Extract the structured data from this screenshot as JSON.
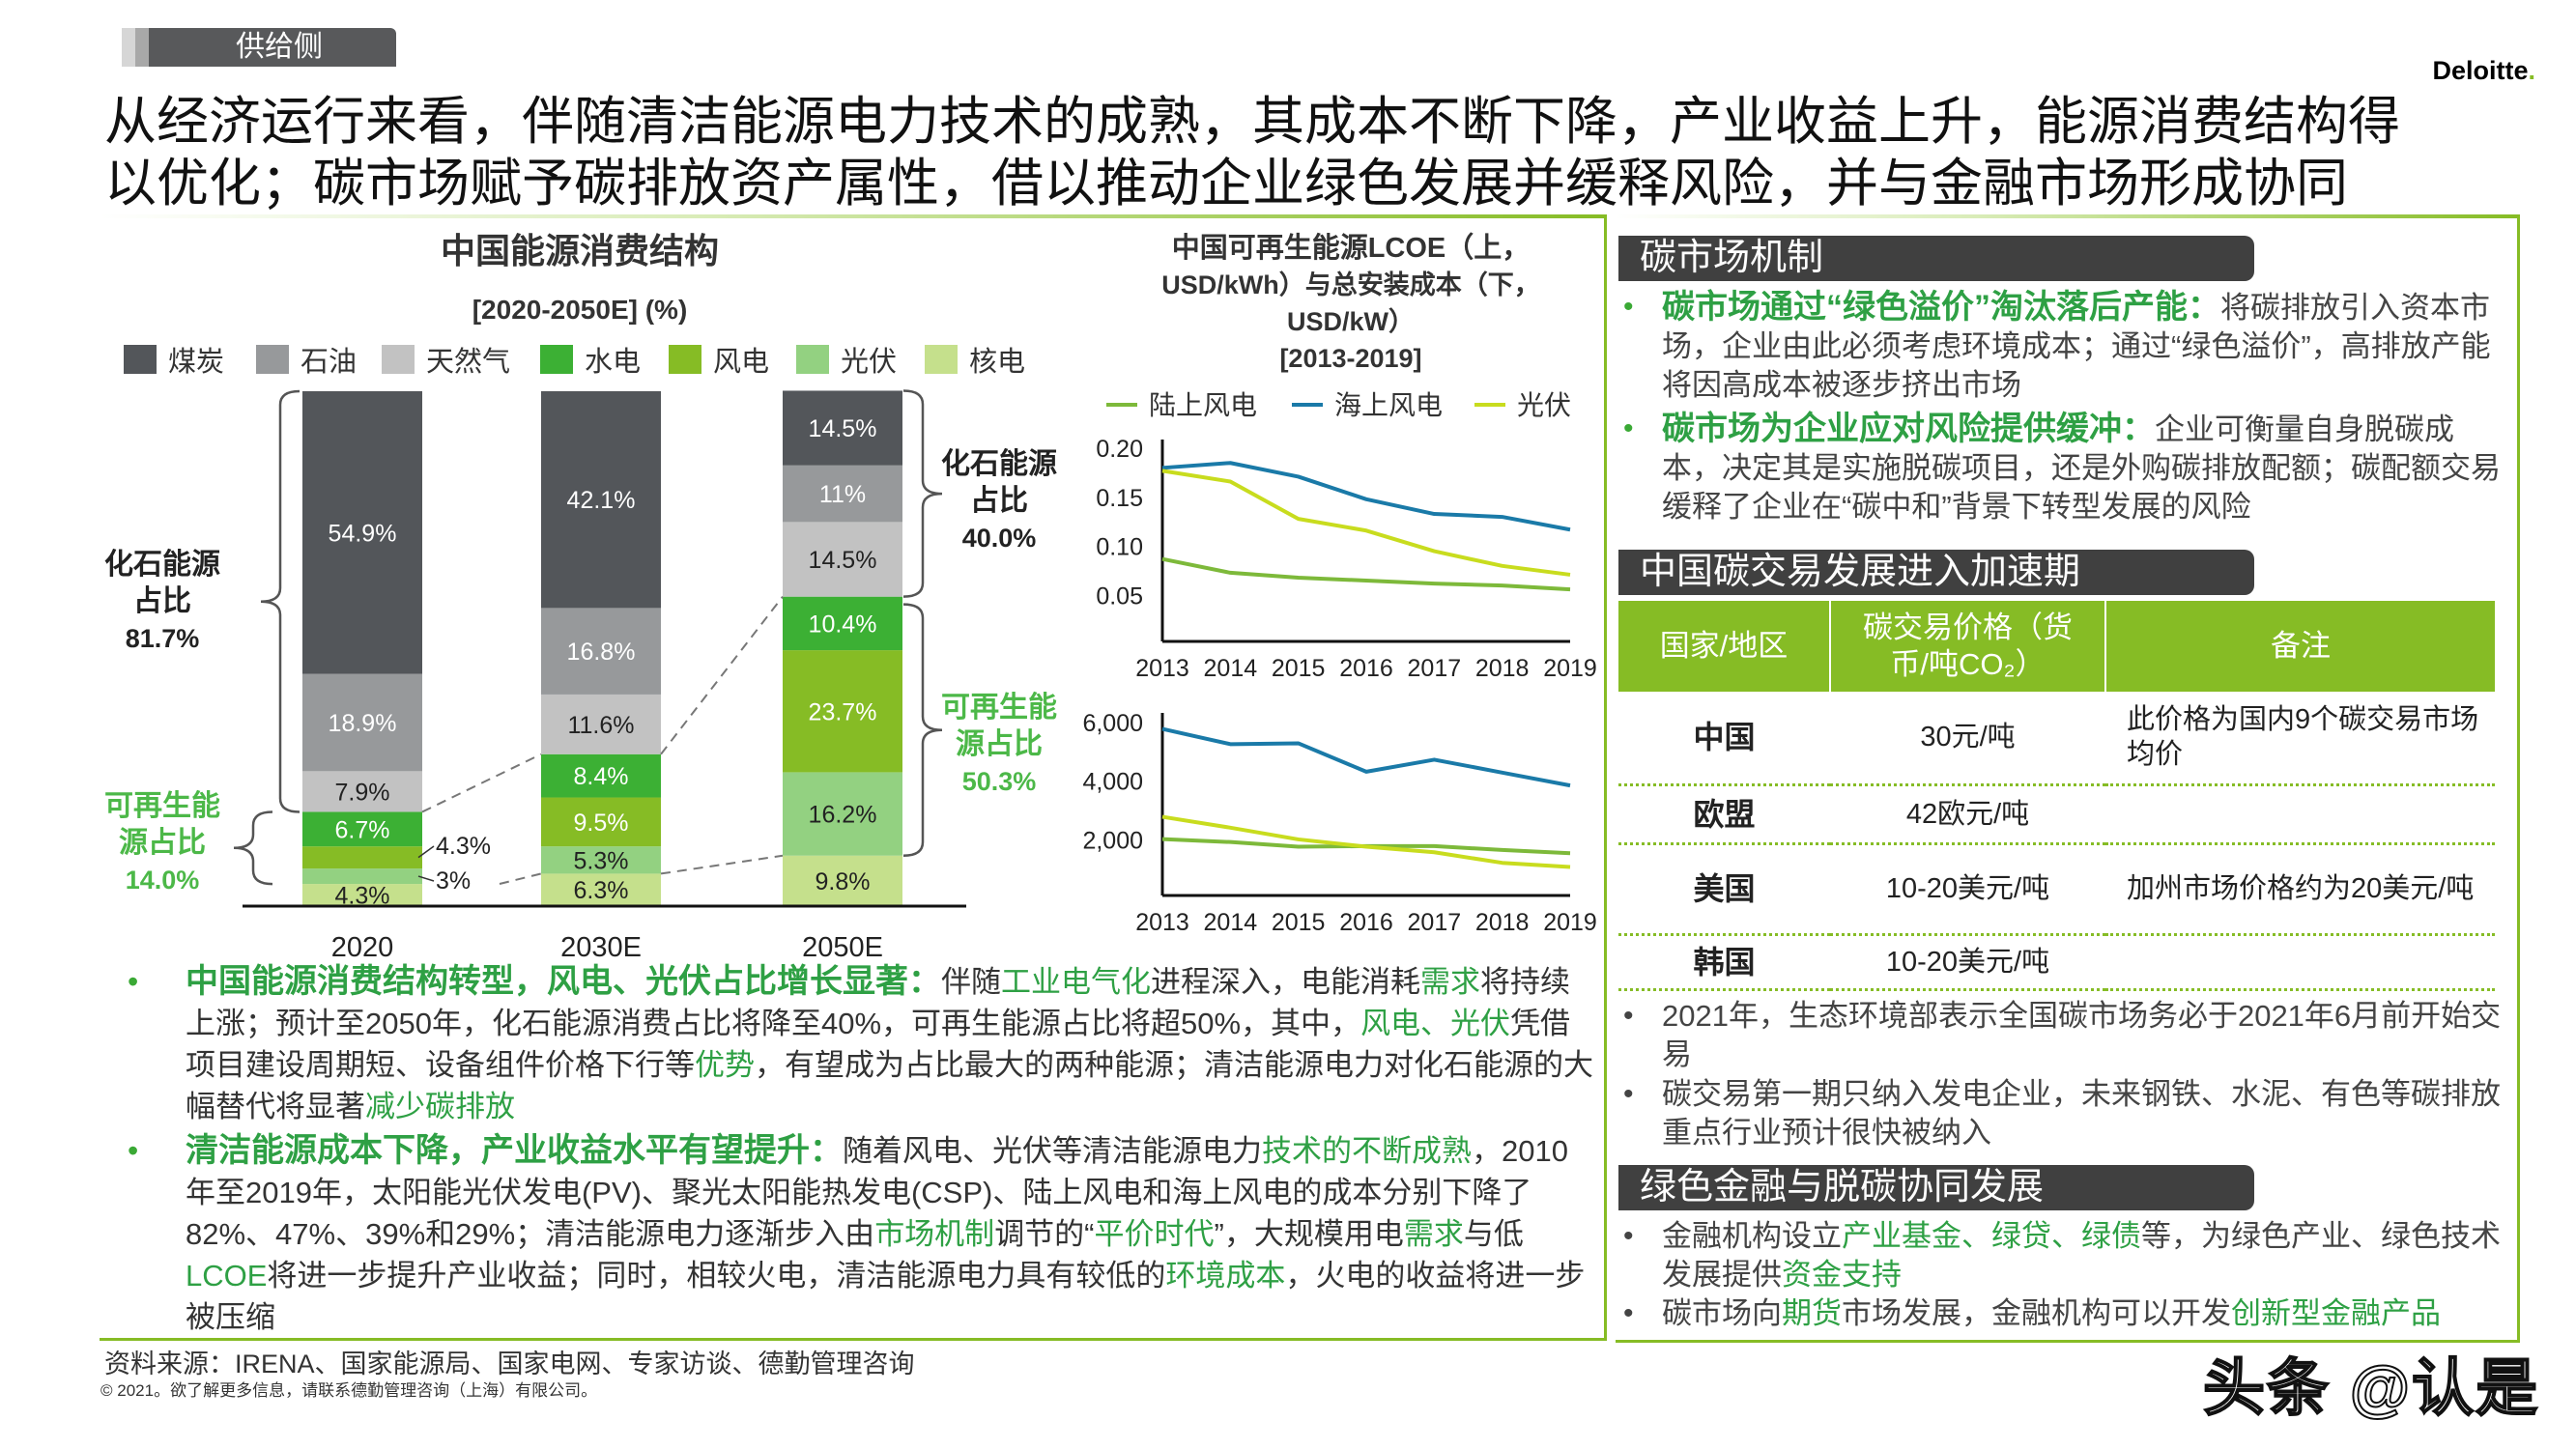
{
  "header": {
    "section_tag": "供给侧",
    "logo": "Deloitte",
    "logo_dot": ".",
    "title_lines": [
      "从经济运行来看，伴随清洁能源电力技术的成熟，其成本不断下降，产业收益上升，能源消费结构得",
      "以优化；碳市场赋予碳排放资产属性，借以推动企业绿色发展并缓释风险，并与金融市场形成协同"
    ]
  },
  "colors": {
    "accent": "#86BC25",
    "highlight": "#2EA044",
    "dark_header": "#404040",
    "offshore": "#1A7AA8",
    "onshore": "#7DB93A",
    "pv": "#C8DC1E"
  },
  "chart_data": [
    {
      "type": "bar",
      "stacked": true,
      "title": "中国能源消费结构",
      "subtitle": "[2020-2050E] (%)",
      "legend_position": "top",
      "categories": [
        "2020",
        "2030E",
        "2050E"
      ],
      "series": [
        {
          "name": "核电",
          "values": [
            4.3,
            6.3,
            9.8
          ],
          "color": "#C5E08C"
        },
        {
          "name": "光伏",
          "values": [
            3.0,
            5.3,
            16.2
          ],
          "color": "#93D181"
        },
        {
          "name": "风电",
          "values": [
            4.3,
            9.5,
            23.7
          ],
          "color": "#86BC25"
        },
        {
          "name": "水电",
          "values": [
            6.7,
            8.4,
            10.4
          ],
          "color": "#3CB034"
        },
        {
          "name": "天然气",
          "values": [
            7.9,
            11.6,
            14.5
          ],
          "color": "#C2C2C2"
        },
        {
          "name": "石油",
          "values": [
            18.9,
            16.8,
            11.0
          ],
          "color": "#97999B"
        },
        {
          "name": "煤炭",
          "values": [
            54.9,
            42.1,
            14.5
          ],
          "color": "#53565A"
        }
      ],
      "legend_order": [
        "煤炭",
        "石油",
        "天然气",
        "水电",
        "风电",
        "光伏",
        "核电"
      ],
      "annotations": {
        "fossil_2020": {
          "lines": [
            "化石能源",
            "占比"
          ],
          "value": "81.7%"
        },
        "renewable_2020": {
          "lines": [
            "可再生能",
            "源占比"
          ],
          "value": "14.0%"
        },
        "fossil_2050": {
          "lines": [
            "化石能源",
            "占比"
          ],
          "value": "40.0%"
        },
        "renewable_2050": {
          "lines": [
            "可再生能",
            "源占比"
          ],
          "value": "50.3%"
        }
      }
    },
    {
      "type": "line",
      "title_lines": [
        "中国可再生能源LCOE（上，",
        "USD/kWh）与总安装成本（下，",
        "USD/kW）"
      ],
      "subtitle": "[2013-2019]",
      "legend_position": "top",
      "x": [
        2013,
        2014,
        2015,
        2016,
        2017,
        2018,
        2019
      ],
      "ylim": [
        0,
        0.2
      ],
      "yticks": [
        "0.20",
        "0.15",
        "0.10",
        "0.05"
      ],
      "series": [
        {
          "name": "陆上风电",
          "values": [
            0.086,
            0.072,
            0.067,
            0.064,
            0.061,
            0.059,
            0.055
          ]
        },
        {
          "name": "海上风电",
          "values": [
            0.179,
            0.184,
            0.17,
            0.147,
            0.132,
            0.129,
            0.116
          ]
        },
        {
          "name": "光伏",
          "values": [
            0.176,
            0.165,
            0.127,
            0.115,
            0.094,
            0.079,
            0.07
          ]
        }
      ]
    },
    {
      "type": "line",
      "x": [
        2013,
        2014,
        2015,
        2016,
        2017,
        2018,
        2019
      ],
      "ylim": [
        0,
        6000
      ],
      "yticks": [
        "6,000",
        "4,000",
        "2,000"
      ],
      "series": [
        {
          "name": "陆上风电",
          "values": [
            1990,
            1890,
            1730,
            1750,
            1750,
            1620,
            1510
          ]
        },
        {
          "name": "海上风电",
          "values": [
            5750,
            5230,
            5260,
            4290,
            4700,
            4260,
            3820
          ]
        },
        {
          "name": "光伏",
          "values": [
            2750,
            2380,
            1980,
            1730,
            1540,
            1180,
            1040
          ]
        }
      ]
    }
  ],
  "left_bullets": [
    {
      "segments": [
        {
          "text": "中国能源消费结构转型，风电、光伏占比增长显著：",
          "hl": true,
          "bold": true
        },
        {
          "text": "伴随"
        },
        {
          "text": "工业电气化",
          "hl": true
        },
        {
          "text": "进程深入，电能消耗"
        },
        {
          "text": "需求",
          "hl": true
        },
        {
          "text": "将持续上涨；预计至2050年，化石能源消费占比将降至40%，可再生能源占比将超50%，其中，"
        },
        {
          "text": "风电、光伏",
          "hl": true
        },
        {
          "text": "凭借项目建设周期短、设备组件价格下行等"
        },
        {
          "text": "优势",
          "hl": true
        },
        {
          "text": "，有望成为占比最大的两种能源；清洁能源电力对化石能源的大幅替代将显著"
        },
        {
          "text": "减少碳排放",
          "hl": true
        }
      ]
    },
    {
      "segments": [
        {
          "text": "清洁能源成本下降，产业收益水平有望提升：",
          "hl": true,
          "bold": true
        },
        {
          "text": "随着风电、光伏等清洁能源电力"
        },
        {
          "text": "技术的不断成熟",
          "hl": true
        },
        {
          "text": "，2010年至2019年，太阳能光伏发电(PV)、聚光太阳能热发电(CSP)、陆上风电和海上风电的成本分别下降了82%、47%、39%和29%；清洁能源电力逐渐步入由"
        },
        {
          "text": "市场机制",
          "hl": true
        },
        {
          "text": "调节的“"
        },
        {
          "text": "平价时代",
          "hl": true
        },
        {
          "text": "”，大规模用电"
        },
        {
          "text": "需求",
          "hl": true
        },
        {
          "text": "与低"
        },
        {
          "text": "LCOE",
          "hl": true
        },
        {
          "text": "将进一步提升产业收益；同时，相较火电，清洁能源电力具有较低的"
        },
        {
          "text": "环境成本",
          "hl": true
        },
        {
          "text": "，火电的收益将进一步被压缩"
        }
      ]
    }
  ],
  "right_panel": {
    "carbon_mechanism": {
      "title": "碳市场机制",
      "bullets": [
        {
          "segments": [
            {
              "text": "碳市场通过“绿色溢价”淘汰落后产能：",
              "hl": true,
              "bold": true
            },
            {
              "text": "将碳排放引入资本市场，企业由此必须考虑环境成本；通过“绿色溢价”，高排放产能将因高成本被逐步挤出市场"
            }
          ]
        },
        {
          "segments": [
            {
              "text": "碳市场为企业应对风险提供缓冲：",
              "hl": true,
              "bold": true
            },
            {
              "text": "企业可衡量自身脱碳成本，决定其是实施脱碳项目，还是外购碳排放配额；碳配额交易缓释了企业在“碳中和”背景下转型发展的风险"
            }
          ]
        }
      ]
    },
    "carbon_trading": {
      "title": "中国碳交易发展进入加速期",
      "table": {
        "headers": [
          "国家/地区",
          "碳交易价格（货币/吨CO₂）",
          "备注"
        ],
        "rows": [
          [
            "中国",
            "30元/吨",
            "此价格为国内9个碳交易市场均价"
          ],
          [
            "欧盟",
            "42欧元/吨",
            ""
          ],
          [
            "美国",
            "10-20美元/吨",
            "加州市场价格约为20美元/吨"
          ],
          [
            "韩国",
            "10-20美元/吨",
            ""
          ]
        ]
      },
      "bullets": [
        {
          "segments": [
            {
              "text": "2021年，生态环境部表示全国碳市场务必于2021年6月前开始交易"
            }
          ]
        },
        {
          "segments": [
            {
              "text": "碳交易第一期只纳入发电企业，未来钢铁、水泥、有色等碳排放重点行业预计很快被纳入"
            }
          ]
        }
      ]
    },
    "green_finance": {
      "title": "绿色金融与脱碳协同发展",
      "bullets": [
        {
          "segments": [
            {
              "text": "金融机构设立"
            },
            {
              "text": "产业基金、绿贷、绿债",
              "hl": true
            },
            {
              "text": "等，为绿色产业、绿色技术发展提供"
            },
            {
              "text": "资金支持",
              "hl": true
            }
          ]
        },
        {
          "segments": [
            {
              "text": "碳市场向"
            },
            {
              "text": "期货",
              "hl": true
            },
            {
              "text": "市场发展，金融机构可以开发"
            },
            {
              "text": "创新型金融产品",
              "hl": true
            }
          ]
        }
      ]
    }
  },
  "footer": {
    "source": "资料来源：IRENA、国家能源局、国家电网、专家访谈、德勤管理咨询",
    "copyright": "© 2021。欲了解更多信息，请联系德勤管理咨询（上海）有限公司。"
  },
  "watermark": "头条 @认是"
}
